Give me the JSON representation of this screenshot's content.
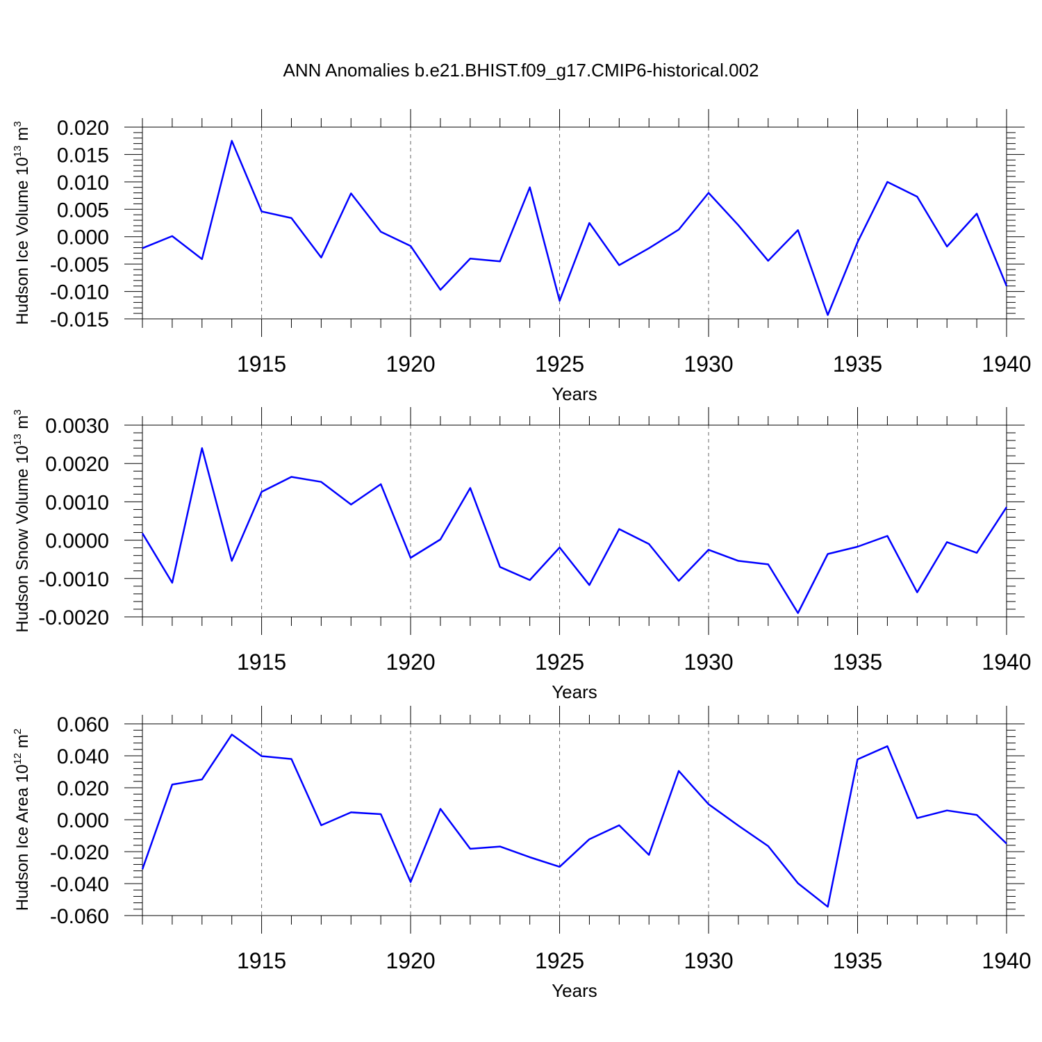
{
  "title": "ANN Anomalies b.e21.BHIST.f09_g17.CMIP6-historical.002",
  "colors": {
    "series": "#0000ff",
    "axis": "#000000"
  },
  "chart_data": [
    {
      "type": "line",
      "ylabel_main": "Hudson Ice Volume 10",
      "ylabel_exp": "13",
      "ylabel_unit": " m",
      "ylabel_unit_exp": "3",
      "xlabel": "Years",
      "xlim": [
        1911,
        1940
      ],
      "xticks": [
        1915,
        1920,
        1925,
        1930,
        1935,
        1940
      ],
      "ylim": [
        -0.015,
        0.02
      ],
      "yticks": [
        -0.015,
        -0.01,
        -0.005,
        0.0,
        0.005,
        0.01,
        0.015,
        0.02
      ],
      "ytick_labels": [
        "-0.015",
        "-0.010",
        "-0.005",
        "0.000",
        "0.005",
        "0.010",
        "0.015",
        "0.020"
      ],
      "x": [
        1911,
        1912,
        1913,
        1914,
        1915,
        1916,
        1917,
        1918,
        1919,
        1920,
        1921,
        1922,
        1923,
        1924,
        1925,
        1926,
        1927,
        1928,
        1929,
        1930,
        1931,
        1932,
        1933,
        1934,
        1935,
        1936,
        1937,
        1938,
        1939,
        1940
      ],
      "values": [
        -0.0021,
        0.0001,
        -0.0041,
        0.0175,
        0.0046,
        0.0034,
        -0.0038,
        0.0079,
        0.0009,
        -0.0017,
        -0.0097,
        -0.004,
        -0.0045,
        0.009,
        -0.0117,
        0.0025,
        -0.0052,
        -0.0021,
        0.0013,
        0.008,
        0.0021,
        -0.0044,
        0.0012,
        -0.0143,
        -0.001,
        0.01,
        0.0073,
        -0.0018,
        0.0042,
        -0.009
      ]
    },
    {
      "type": "line",
      "ylabel_main": "Hudson Snow Volume 10",
      "ylabel_exp": "13",
      "ylabel_unit": " m",
      "ylabel_unit_exp": "3",
      "xlabel": "Years",
      "xlim": [
        1911,
        1940
      ],
      "xticks": [
        1915,
        1920,
        1925,
        1930,
        1935,
        1940
      ],
      "ylim": [
        -0.002,
        0.003
      ],
      "yticks": [
        -0.002,
        -0.001,
        0.0,
        0.001,
        0.002,
        0.003
      ],
      "ytick_labels": [
        "-0.0020",
        "-0.0010",
        "0.0000",
        "0.0010",
        "0.0020",
        "0.0030"
      ],
      "x": [
        1911,
        1912,
        1913,
        1914,
        1915,
        1916,
        1917,
        1918,
        1919,
        1920,
        1921,
        1922,
        1923,
        1924,
        1925,
        1926,
        1927,
        1928,
        1929,
        1930,
        1931,
        1932,
        1933,
        1934,
        1935,
        1936,
        1937,
        1938,
        1939,
        1940
      ],
      "values": [
        0.00018,
        -0.00111,
        0.0024,
        -0.00054,
        0.00126,
        0.00165,
        0.00152,
        0.00093,
        0.00146,
        -0.00046,
        2e-05,
        0.00136,
        -0.0007,
        -0.00104,
        -0.00019,
        -0.00117,
        0.00029,
        -0.0001,
        -0.00106,
        -0.00025,
        -0.00054,
        -0.00063,
        -0.0019,
        -0.00036,
        -0.00017,
        0.00011,
        -0.00136,
        -5e-05,
        -0.00033,
        0.00086
      ]
    },
    {
      "type": "line",
      "ylabel_main": "Hudson Ice Area 10",
      "ylabel_exp": "12",
      "ylabel_unit": " m",
      "ylabel_unit_exp": "2",
      "xlabel": "Years",
      "xlim": [
        1911,
        1940
      ],
      "xticks": [
        1915,
        1920,
        1925,
        1930,
        1935,
        1940
      ],
      "ylim": [
        -0.06,
        0.06
      ],
      "yticks": [
        -0.06,
        -0.04,
        -0.02,
        0.0,
        0.02,
        0.04,
        0.06
      ],
      "ytick_labels": [
        "-0.060",
        "-0.040",
        "-0.020",
        "0.000",
        "0.020",
        "0.040",
        "0.060"
      ],
      "x": [
        1911,
        1912,
        1913,
        1914,
        1915,
        1916,
        1917,
        1918,
        1919,
        1920,
        1921,
        1922,
        1923,
        1924,
        1925,
        1926,
        1927,
        1928,
        1929,
        1930,
        1931,
        1932,
        1933,
        1934,
        1935,
        1936,
        1937,
        1938,
        1939,
        1940
      ],
      "values": [
        -0.031,
        0.022,
        0.0252,
        0.0533,
        0.0398,
        0.038,
        -0.0035,
        0.0046,
        0.0035,
        -0.039,
        0.0068,
        -0.0182,
        -0.0168,
        -0.0235,
        -0.0295,
        -0.0122,
        -0.0035,
        -0.022,
        0.0305,
        0.0097,
        -0.0037,
        -0.0165,
        -0.0398,
        -0.0545,
        0.0378,
        0.046,
        0.001,
        0.0058,
        0.003,
        -0.015
      ]
    }
  ]
}
